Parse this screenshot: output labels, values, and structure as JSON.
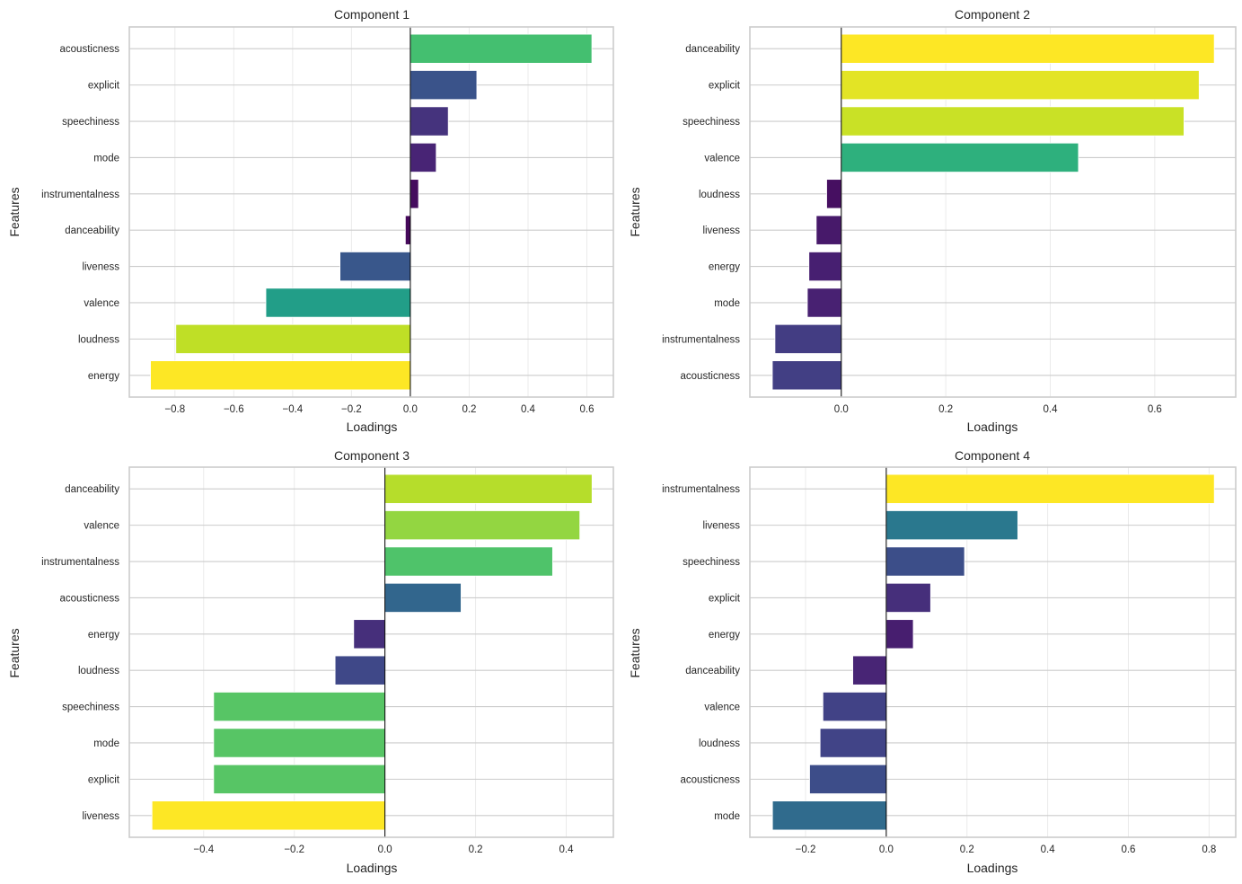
{
  "figure": {
    "colormap": "viridis",
    "color_rule": "bar color = viridis(|loading| / max |loading| within subplot)"
  },
  "chart_data": [
    {
      "type": "bar",
      "orientation": "horizontal",
      "title": "Component 1",
      "xlabel": "Loadings",
      "ylabel": "Features",
      "xlim": [
        -0.955,
        0.69
      ],
      "xticks": [
        -0.8,
        -0.6,
        -0.4,
        -0.2,
        0.0,
        0.2,
        0.4,
        0.6
      ],
      "xtick_labels": [
        "−0.8",
        "−0.6",
        "−0.4",
        "−0.2",
        "0.0",
        "0.2",
        "0.4",
        "0.6"
      ],
      "grid": true,
      "categories": [
        "acousticness",
        "explicit",
        "speechiness",
        "mode",
        "instrumentalness",
        "danceability",
        "liveness",
        "valence",
        "loudness",
        "energy"
      ],
      "values": [
        0.617,
        0.226,
        0.129,
        0.088,
        0.028,
        -0.017,
        -0.239,
        -0.491,
        -0.797,
        -0.883
      ]
    },
    {
      "type": "bar",
      "orientation": "horizontal",
      "title": "Component 2",
      "xlabel": "Loadings",
      "ylabel": "Features",
      "xlim": [
        -0.175,
        0.755
      ],
      "xticks": [
        0.0,
        0.2,
        0.4,
        0.6
      ],
      "xtick_labels": [
        "0.0",
        "0.2",
        "0.4",
        "0.6"
      ],
      "grid": true,
      "categories": [
        "danceability",
        "explicit",
        "speechiness",
        "valence",
        "loudness",
        "liveness",
        "energy",
        "mode",
        "instrumentalness",
        "acousticness"
      ],
      "values": [
        0.714,
        0.685,
        0.656,
        0.454,
        -0.028,
        -0.048,
        -0.062,
        -0.065,
        -0.127,
        -0.132
      ]
    },
    {
      "type": "bar",
      "orientation": "horizontal",
      "title": "Component 3",
      "xlabel": "Loadings",
      "ylabel": "Features",
      "xlim": [
        -0.564,
        0.504
      ],
      "xticks": [
        -0.4,
        -0.2,
        0.0,
        0.2,
        0.4
      ],
      "xtick_labels": [
        "−0.4",
        "−0.2",
        "0.0",
        "0.2",
        "0.4"
      ],
      "grid": true,
      "categories": [
        "danceability",
        "valence",
        "instrumentalness",
        "acousticness",
        "energy",
        "loudness",
        "speechiness",
        "mode",
        "explicit",
        "liveness"
      ],
      "values": [
        0.457,
        0.43,
        0.37,
        0.168,
        -0.069,
        -0.11,
        -0.378,
        -0.378,
        -0.378,
        -0.514
      ]
    },
    {
      "type": "bar",
      "orientation": "horizontal",
      "title": "Component 4",
      "xlabel": "Loadings",
      "ylabel": "Features",
      "xlim": [
        -0.338,
        0.866
      ],
      "xticks": [
        -0.2,
        0.0,
        0.2,
        0.4,
        0.6,
        0.8
      ],
      "xtick_labels": [
        "−0.2",
        "0.0",
        "0.2",
        "0.4",
        "0.6",
        "0.8"
      ],
      "grid": true,
      "categories": [
        "instrumentalness",
        "liveness",
        "speechiness",
        "explicit",
        "energy",
        "danceability",
        "valence",
        "loudness",
        "acousticness",
        "mode"
      ],
      "values": [
        0.813,
        0.326,
        0.194,
        0.11,
        0.067,
        -0.083,
        -0.157,
        -0.164,
        -0.19,
        -0.282
      ]
    }
  ]
}
